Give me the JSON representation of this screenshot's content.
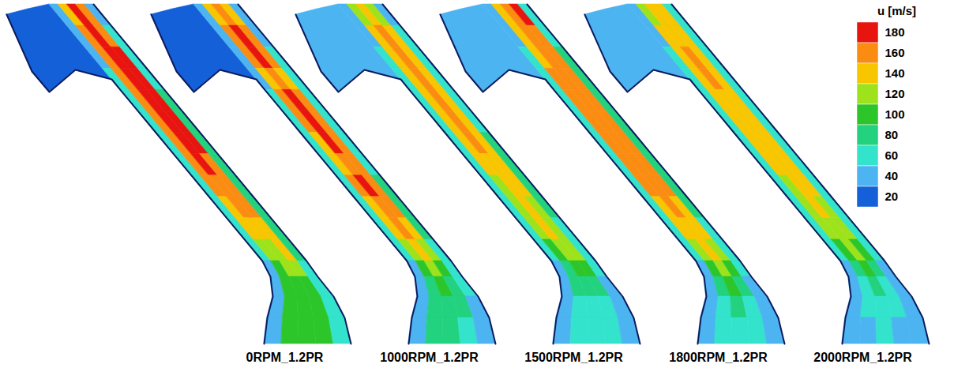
{
  "chart_data": {
    "type": "contour",
    "colorbar": {
      "label": "u [m/s]",
      "ticks": [
        20,
        40,
        60,
        80,
        100,
        120,
        140,
        160,
        180
      ]
    },
    "panels": [
      {
        "name": "0RPM_1.2PR",
        "inlet_u": 20,
        "u": [
          [
            40,
            140,
            180,
            160,
            40
          ],
          [
            40,
            160,
            180,
            160,
            60
          ],
          [
            40,
            160,
            180,
            180,
            60
          ],
          [
            60,
            160,
            180,
            180,
            60
          ],
          [
            60,
            160,
            180,
            180,
            80
          ],
          [
            60,
            160,
            180,
            180,
            80
          ],
          [
            60,
            160,
            180,
            180,
            80
          ],
          [
            60,
            160,
            180,
            160,
            80
          ],
          [
            60,
            160,
            160,
            160,
            80
          ],
          [
            60,
            140,
            160,
            160,
            80
          ],
          [
            60,
            140,
            140,
            140,
            80
          ],
          [
            60,
            120,
            120,
            140,
            80
          ],
          [
            40,
            100,
            120,
            120,
            60
          ],
          [
            40,
            100,
            100,
            100,
            60
          ],
          [
            40,
            100,
            100,
            100,
            60
          ],
          [
            40,
            100,
            100,
            100,
            60
          ]
        ]
      },
      {
        "name": "1000RPM_1.2PR",
        "inlet_u": 20,
        "u": [
          [
            40,
            140,
            160,
            140,
            40
          ],
          [
            40,
            160,
            180,
            160,
            40
          ],
          [
            40,
            160,
            180,
            160,
            60
          ],
          [
            40,
            140,
            160,
            140,
            60
          ],
          [
            60,
            160,
            180,
            160,
            60
          ],
          [
            60,
            160,
            180,
            160,
            60
          ],
          [
            60,
            140,
            180,
            160,
            60
          ],
          [
            60,
            140,
            160,
            160,
            60
          ],
          [
            60,
            160,
            180,
            160,
            80
          ],
          [
            60,
            140,
            160,
            160,
            80
          ],
          [
            60,
            140,
            160,
            140,
            80
          ],
          [
            60,
            120,
            140,
            120,
            60
          ],
          [
            40,
            100,
            120,
            100,
            60
          ],
          [
            40,
            80,
            100,
            80,
            60
          ],
          [
            40,
            80,
            80,
            80,
            40
          ],
          [
            40,
            80,
            80,
            60,
            40
          ]
        ]
      },
      {
        "name": "1500RPM_1.2PR",
        "inlet_u": 40,
        "u": [
          [
            40,
            120,
            140,
            120,
            40
          ],
          [
            40,
            140,
            160,
            140,
            60
          ],
          [
            60,
            140,
            160,
            140,
            60
          ],
          [
            60,
            140,
            160,
            140,
            60
          ],
          [
            60,
            140,
            160,
            140,
            60
          ],
          [
            60,
            140,
            160,
            140,
            60
          ],
          [
            60,
            140,
            160,
            140,
            80
          ],
          [
            60,
            140,
            140,
            140,
            80
          ],
          [
            60,
            120,
            140,
            140,
            80
          ],
          [
            60,
            120,
            140,
            120,
            80
          ],
          [
            60,
            120,
            140,
            120,
            60
          ],
          [
            60,
            100,
            120,
            120,
            60
          ],
          [
            40,
            80,
            100,
            100,
            60
          ],
          [
            40,
            80,
            80,
            80,
            40
          ],
          [
            40,
            60,
            60,
            60,
            40
          ],
          [
            40,
            60,
            60,
            60,
            40
          ]
        ]
      },
      {
        "name": "1800RPM_1.2PR",
        "inlet_u": 40,
        "u": [
          [
            40,
            140,
            160,
            180,
            60
          ],
          [
            40,
            140,
            160,
            160,
            60
          ],
          [
            60,
            140,
            160,
            160,
            80
          ],
          [
            60,
            160,
            160,
            160,
            80
          ],
          [
            60,
            160,
            160,
            160,
            80
          ],
          [
            60,
            160,
            160,
            160,
            80
          ],
          [
            60,
            160,
            160,
            160,
            80
          ],
          [
            60,
            160,
            160,
            160,
            80
          ],
          [
            60,
            160,
            160,
            160,
            80
          ],
          [
            60,
            140,
            160,
            140,
            80
          ],
          [
            60,
            140,
            140,
            140,
            60
          ],
          [
            60,
            120,
            140,
            120,
            60
          ],
          [
            40,
            100,
            120,
            100,
            60
          ],
          [
            40,
            80,
            100,
            80,
            40
          ],
          [
            40,
            60,
            80,
            60,
            40
          ],
          [
            40,
            60,
            60,
            60,
            40
          ]
        ]
      },
      {
        "name": "2000RPM_1.2PR",
        "inlet_u": 40,
        "u": [
          [
            40,
            120,
            140,
            140,
            60
          ],
          [
            40,
            140,
            140,
            140,
            60
          ],
          [
            60,
            140,
            160,
            140,
            60
          ],
          [
            60,
            140,
            160,
            140,
            60
          ],
          [
            60,
            140,
            140,
            140,
            60
          ],
          [
            60,
            140,
            140,
            140,
            60
          ],
          [
            60,
            140,
            140,
            140,
            60
          ],
          [
            60,
            140,
            140,
            140,
            60
          ],
          [
            60,
            120,
            140,
            140,
            60
          ],
          [
            60,
            120,
            140,
            120,
            60
          ],
          [
            60,
            120,
            120,
            120,
            60
          ],
          [
            60,
            100,
            120,
            100,
            60
          ],
          [
            40,
            80,
            100,
            80,
            40
          ],
          [
            40,
            60,
            80,
            60,
            40
          ],
          [
            40,
            60,
            60,
            60,
            40
          ],
          [
            40,
            40,
            60,
            40,
            40
          ]
        ]
      }
    ]
  }
}
